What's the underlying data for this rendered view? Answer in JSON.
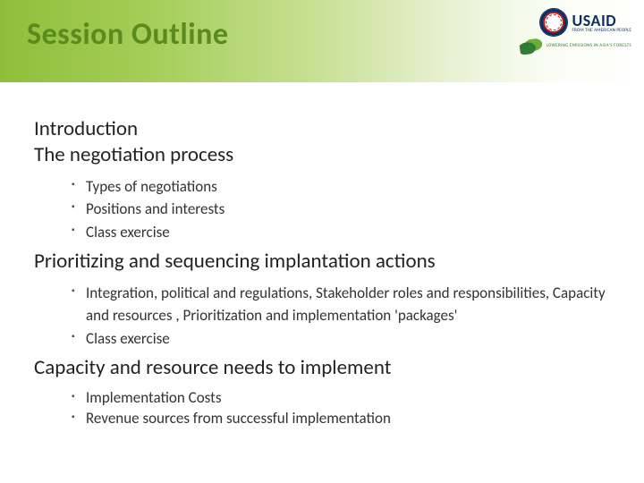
{
  "header": {
    "title": "Session Outline",
    "title_color": "#5b8a1e",
    "gradient_colors": [
      "#8fbf3a",
      "#a6cf5b",
      "#c9e196",
      "#e8f1d2",
      "#fafdf4",
      "#ffffff"
    ]
  },
  "logos": {
    "usaid_main": "USAID",
    "usaid_sub": "FROM THE AMERICAN PEOPLE",
    "leaf_text": "LOWERING EMISSIONS IN ASIA'S FORESTS"
  },
  "sections": [
    {
      "heading": "Introduction",
      "bullets": []
    },
    {
      "heading": "The negotiation process",
      "bullets": [
        "Types of negotiations",
        "Positions and interests",
        "Class exercise"
      ]
    },
    {
      "heading": "Prioritizing and sequencing implantation actions",
      "bullets": [
        "Integration, political and regulations, Stakeholder roles  and responsibilities, Capacity and resources , Prioritization and implementation 'packages'",
        "Class exercise"
      ]
    },
    {
      "heading": "Capacity and resource needs to implement",
      "bullets": [
        "Implementation Costs",
        "Revenue sources from successful implementation"
      ]
    }
  ],
  "typography": {
    "title_fontsize": 34,
    "heading_fontsize": 23,
    "bullet_fontsize": 17,
    "font_family": "Calibri"
  },
  "colors": {
    "text": "#333333",
    "heading": "#222222",
    "bullet_marker": "#555555",
    "background": "#ffffff"
  }
}
